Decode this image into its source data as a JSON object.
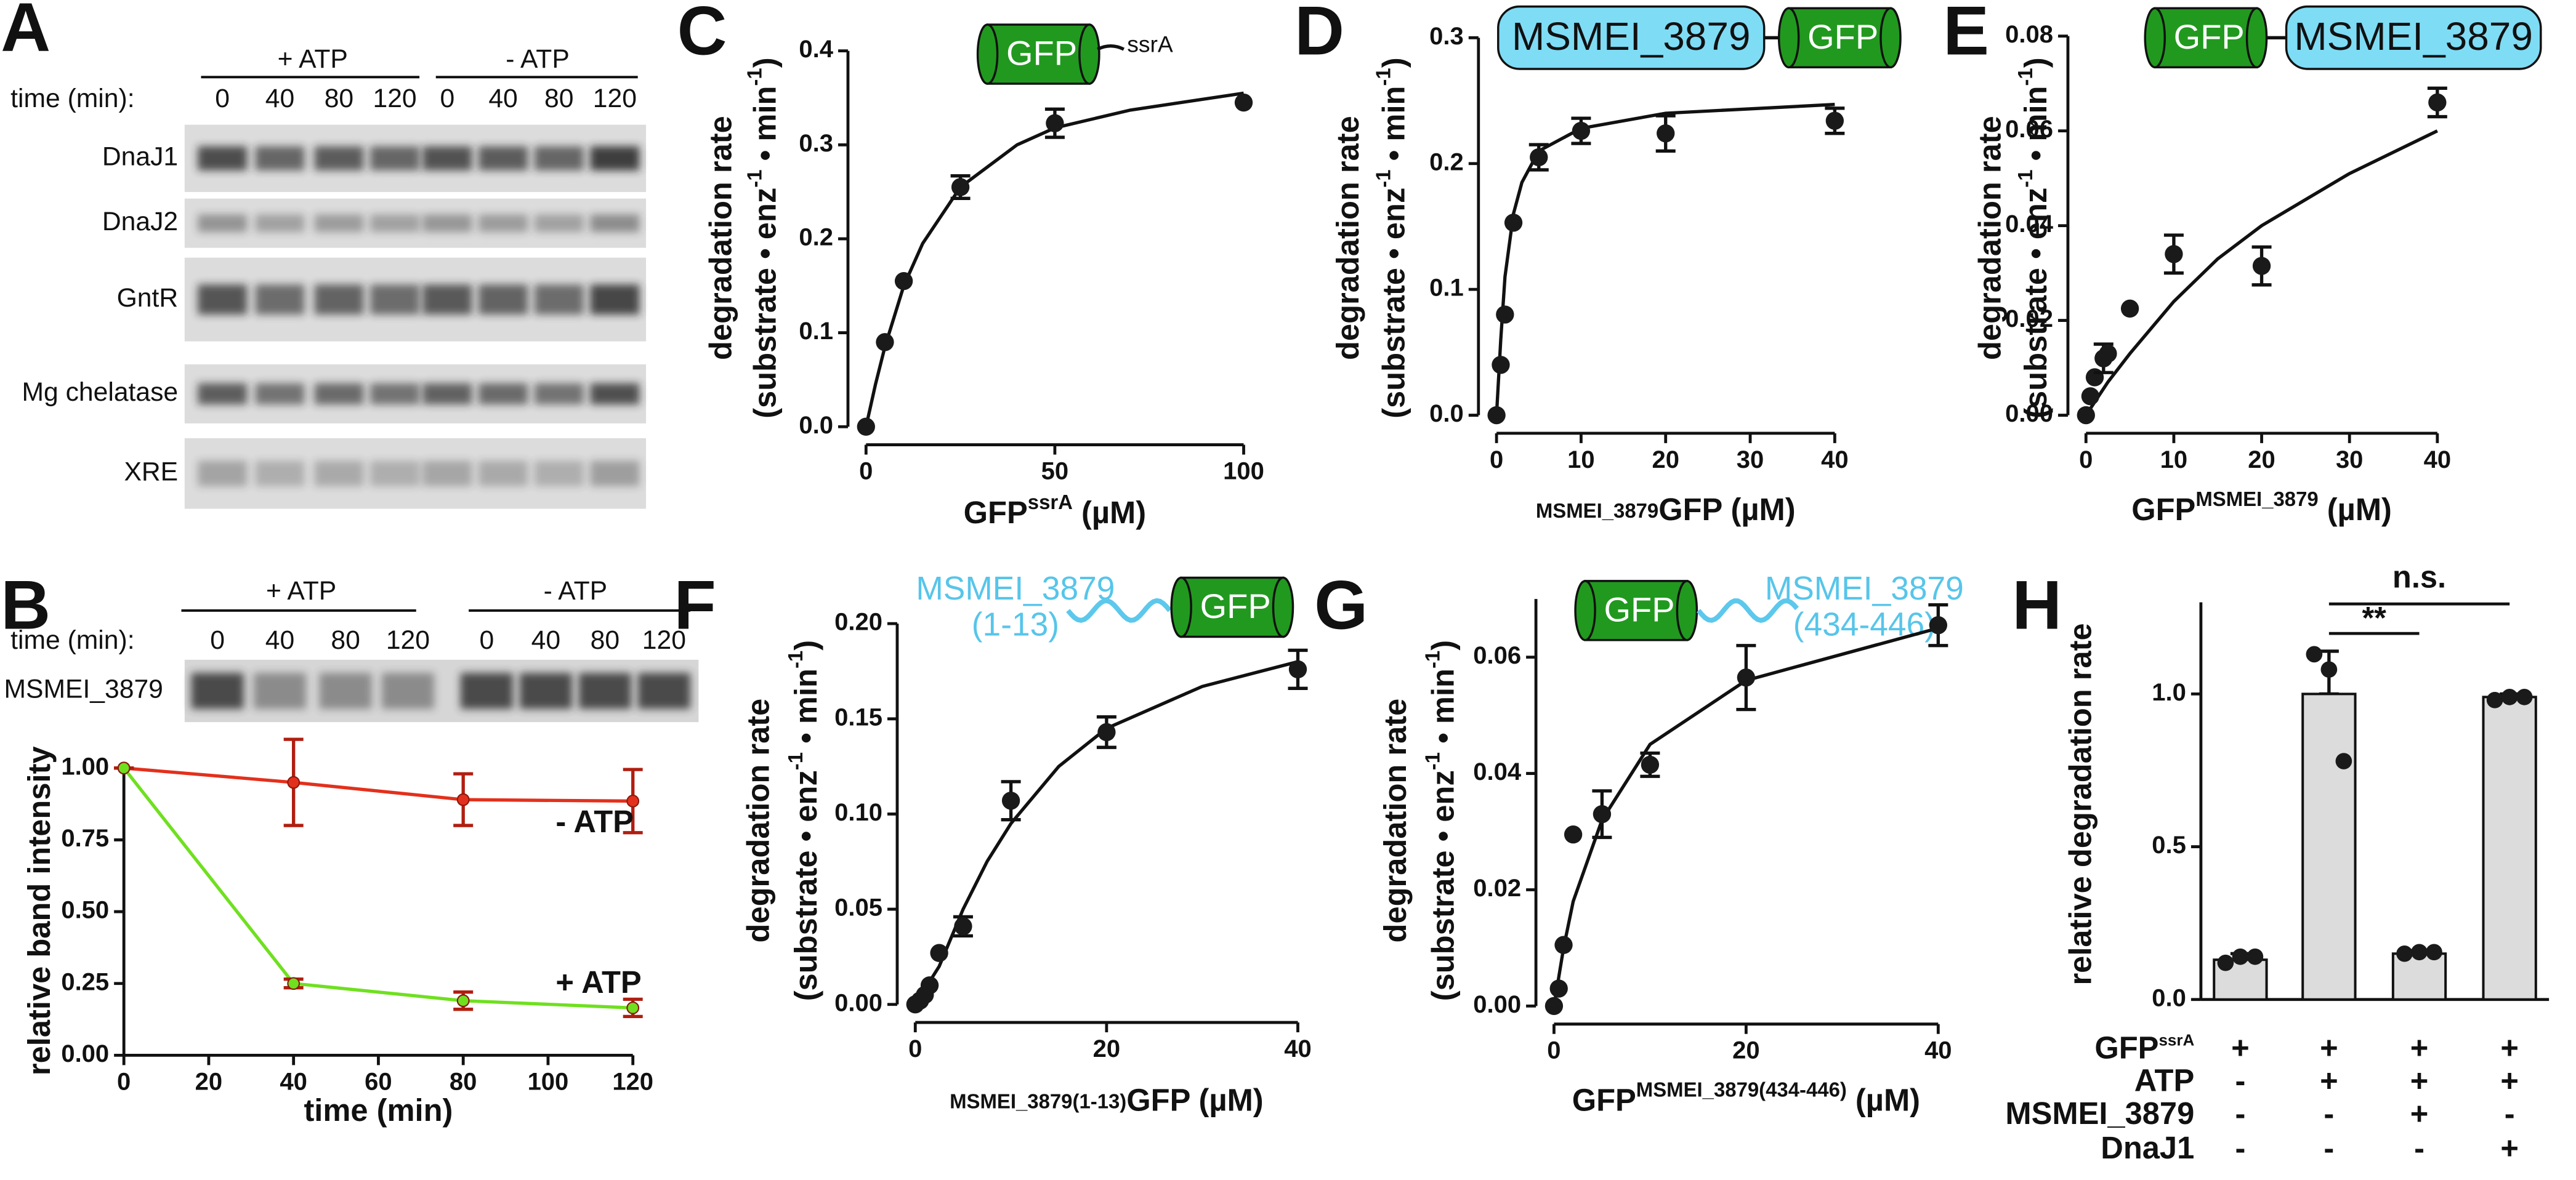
{
  "gels": {
    "panel": "A",
    "conditions": [
      "+ ATP",
      "- ATP"
    ],
    "time_label": "time (min):",
    "times": [
      "0",
      "40",
      "80",
      "120",
      "0",
      "40",
      "80",
      "120"
    ],
    "rows": [
      "DnaJ1",
      "DnaJ2",
      "GntR",
      "Mg chelatase",
      "XRE"
    ]
  },
  "gel_b": {
    "conditions": [
      "+ ATP",
      "- ATP"
    ],
    "time_label": "time (min):",
    "times": [
      "0",
      "40",
      "80",
      "120",
      "0",
      "40",
      "80",
      "120"
    ],
    "rows": [
      "MSMEI_3879"
    ]
  },
  "chart_data": [
    {
      "type": "line",
      "panel": "B",
      "x": [
        0,
        40,
        80,
        120
      ],
      "xlim": [
        0,
        120
      ],
      "xticks": [
        0,
        20,
        40,
        60,
        80,
        100,
        120
      ],
      "ylim": [
        0,
        1
      ],
      "yticks": [
        {
          "value": 0,
          "label": "0.00"
        },
        0.25,
        {
          "value": 0.5,
          "label": "0.50"
        },
        0.75,
        {
          "value": 1,
          "label": "1.00"
        }
      ],
      "x_label": "time (min)",
      "y_label": "relative band intensity",
      "series": [
        {
          "name": "- ATP",
          "color": "#e3301c",
          "values": [
            1.0,
            0.95,
            0.89,
            0.885
          ],
          "errors": [
            0,
            0.15,
            0.09,
            0.11
          ]
        },
        {
          "name": "+ ATP",
          "color": "#6fe01f",
          "values": [
            1.0,
            0.25,
            0.19,
            0.165
          ],
          "errors": [
            0,
            0.015,
            0.03,
            0.03
          ]
        }
      ]
    },
    {
      "type": "scatter",
      "panel": "C",
      "construct": [
        "GFP",
        "ssrA"
      ],
      "x": [
        0,
        5,
        10,
        25,
        50,
        100
      ],
      "values": [
        0,
        0.09,
        0.155,
        0.255,
        0.323,
        0.345
      ],
      "errors": [
        null,
        null,
        null,
        0.012,
        0.015,
        null
      ],
      "fit": {
        "x": [
          0,
          2.5,
          5,
          10,
          15,
          25,
          40,
          50,
          70,
          100
        ],
        "values": [
          0,
          0.045,
          0.085,
          0.15,
          0.195,
          0.255,
          0.3,
          0.318,
          0.337,
          0.355
        ]
      },
      "xlim": [
        0,
        100
      ],
      "xticks": [
        0,
        50,
        100
      ],
      "ylim": [
        0,
        0.4
      ],
      "yticks": [
        {
          "value": 0,
          "label": "0.0"
        },
        0.1,
        0.2,
        0.3,
        0.4
      ],
      "x_label": [
        {
          "text": "GFP"
        },
        {
          "text": "ssrA",
          "sup": true
        },
        {
          "text": " (µM)"
        }
      ],
      "y_label": [
        [
          {
            "text": "degradation rate"
          }
        ],
        [
          {
            "text": "(substrate • enz"
          },
          {
            "text": "-1",
            "sup": true
          },
          {
            "text": " • min"
          },
          {
            "text": "-1",
            "sup": true
          },
          {
            "text": ")"
          }
        ]
      ]
    },
    {
      "type": "scatter",
      "panel": "D",
      "construct": [
        "MSMEI_3879",
        "GFP"
      ],
      "x": [
        0,
        0.5,
        1,
        2,
        5,
        10,
        20,
        40
      ],
      "values": [
        0,
        0.04,
        0.08,
        0.153,
        0.205,
        0.226,
        0.224,
        0.234
      ],
      "errors": [
        null,
        null,
        null,
        null,
        0.01,
        0.01,
        0.014,
        0.01
      ],
      "fit": {
        "x": [
          0,
          0.5,
          1,
          2,
          3,
          5,
          10,
          20,
          40
        ],
        "values": [
          0,
          0.06,
          0.11,
          0.16,
          0.185,
          0.21,
          0.228,
          0.24,
          0.247
        ]
      },
      "xlim": [
        0,
        40
      ],
      "xticks": [
        0,
        10,
        20,
        30,
        40
      ],
      "ylim": [
        0,
        0.3
      ],
      "yticks": [
        {
          "value": 0,
          "label": "0.0"
        },
        0.1,
        0.2,
        0.3
      ],
      "x_label": [
        {
          "text": "MSMEI_3879",
          "sub": true
        },
        {
          "text": "GFP (µM)"
        }
      ],
      "y_label": [
        [
          {
            "text": "degradation rate"
          }
        ],
        [
          {
            "text": "(substrate • enz"
          },
          {
            "text": "-1",
            "sup": true
          },
          {
            "text": " • min"
          },
          {
            "text": "-1",
            "sup": true
          },
          {
            "text": ")"
          }
        ]
      ]
    },
    {
      "type": "scatter",
      "panel": "E",
      "construct": [
        "GFP",
        "MSMEI_3879"
      ],
      "x": [
        0,
        0.5,
        1,
        2,
        2.5,
        5,
        10,
        20,
        40
      ],
      "values": [
        0,
        0.004,
        0.008,
        0.012,
        0.013,
        0.0225,
        0.034,
        0.0315,
        0.066
      ],
      "errors": [
        null,
        null,
        null,
        0.003,
        null,
        null,
        0.004,
        0.004,
        0.003
      ],
      "fit": {
        "x": [
          0,
          2.5,
          5,
          10,
          15,
          20,
          30,
          40
        ],
        "values": [
          0,
          0.007,
          0.013,
          0.024,
          0.033,
          0.04,
          0.051,
          0.06
        ]
      },
      "xlim": [
        0,
        40
      ],
      "xticks": [
        0,
        10,
        20,
        30,
        40
      ],
      "ylim": [
        0,
        0.08
      ],
      "yticks": [
        {
          "value": 0,
          "label": "0.00"
        },
        0.02,
        0.04,
        0.06,
        0.08
      ],
      "x_label": [
        {
          "text": "GFP"
        },
        {
          "text": "MSMEI_3879",
          "sup": true
        },
        {
          "text": " (µM)"
        }
      ],
      "y_label": [
        [
          {
            "text": "degradation rate"
          }
        ],
        [
          {
            "text": "(substrate • enz"
          },
          {
            "text": "-1",
            "sup": true
          },
          {
            "text": " • min"
          },
          {
            "text": "-1",
            "sup": true
          },
          {
            "text": ")"
          }
        ]
      ]
    },
    {
      "type": "scatter",
      "panel": "F",
      "construct": [
        "MSMEI_3879",
        "(1-13)",
        "GFP"
      ],
      "x": [
        0,
        0.5,
        1,
        1.5,
        2.5,
        5,
        10,
        20,
        40
      ],
      "values": [
        0,
        0.002,
        0.005,
        0.01,
        0.027,
        0.041,
        0.107,
        0.143,
        0.176
      ],
      "errors": [
        null,
        null,
        null,
        null,
        null,
        0.005,
        0.01,
        0.008,
        0.01
      ],
      "fit": {
        "x": [
          0,
          2.5,
          5,
          7.5,
          10,
          15,
          20,
          30,
          40
        ],
        "values": [
          0,
          0.02,
          0.05,
          0.075,
          0.095,
          0.125,
          0.145,
          0.167,
          0.18
        ]
      },
      "xlim": [
        0,
        40
      ],
      "xticks": [
        0,
        20,
        40
      ],
      "ylim": [
        0,
        0.2
      ],
      "yticks": [
        {
          "value": 0,
          "label": "0.00"
        },
        0.05,
        {
          "value": 0.1,
          "label": "0.10"
        },
        0.15,
        {
          "value": 0.2,
          "label": "0.20"
        }
      ],
      "x_label": [
        {
          "text": "MSMEI_3879(1-13)",
          "sub": true
        },
        {
          "text": "GFP (µM)"
        }
      ],
      "y_label": [
        [
          {
            "text": "degradation rate"
          }
        ],
        [
          {
            "text": "(substrate • enz"
          },
          {
            "text": "-1",
            "sup": true
          },
          {
            "text": " • min"
          },
          {
            "text": "-1",
            "sup": true
          },
          {
            "text": ")"
          }
        ]
      ]
    },
    {
      "type": "scatter",
      "panel": "G",
      "construct": [
        "GFP",
        "MSMEI_3879",
        "(434-446)"
      ],
      "x": [
        0,
        0.5,
        1,
        2,
        5,
        10,
        20,
        40
      ],
      "values": [
        0,
        0.003,
        0.0105,
        0.0295,
        0.033,
        0.0415,
        0.0565,
        0.0655
      ],
      "errors": [
        null,
        null,
        null,
        null,
        0.004,
        0.002,
        0.0055,
        0.0035
      ],
      "fit": {
        "x": [
          0,
          1,
          2,
          5,
          10,
          20,
          40
        ],
        "values": [
          0,
          0.01,
          0.018,
          0.032,
          0.045,
          0.056,
          0.065
        ]
      },
      "xlim": [
        0,
        40
      ],
      "xticks": [
        0,
        20,
        40
      ],
      "ylim": [
        0,
        0.07
      ],
      "yticks": [
        {
          "value": 0,
          "label": "0.00"
        },
        0.02,
        0.04,
        0.06
      ],
      "x_label": [
        {
          "text": "GFP"
        },
        {
          "text": "MSMEI_3879(434-446)",
          "sup": true
        },
        {
          "text": " (µM)"
        }
      ],
      "y_label": [
        [
          {
            "text": "degradation rate"
          }
        ],
        [
          {
            "text": "(substrate • enz"
          },
          {
            "text": "-1",
            "sup": true
          },
          {
            "text": " • min"
          },
          {
            "text": "-1",
            "sup": true
          },
          {
            "text": ")"
          }
        ]
      ]
    },
    {
      "type": "bar",
      "panel": "H",
      "values": [
        0.13,
        1.0,
        0.15,
        0.99
      ],
      "errors": [
        0.02,
        0.14,
        0.01,
        0.01
      ],
      "color": "#dcdcdc",
      "points": [
        [
          0.12,
          0.14,
          0.14
        ],
        [
          1.13,
          1.08,
          0.78
        ],
        [
          0.15,
          0.155,
          0.155
        ],
        [
          0.98,
          0.99,
          0.99
        ]
      ],
      "ylim": [
        0,
        1.3
      ],
      "yticks": [
        {
          "value": 0,
          "label": "0.0"
        },
        0.5,
        {
          "value": 1,
          "label": "1.0"
        }
      ],
      "y_label": "relative degradation rate",
      "conditions": [
        {
          "name": [
            {
              "text": "GFP"
            },
            {
              "text": "ssrA",
              "sup": true
            }
          ],
          "signs": [
            "+",
            "+",
            "+",
            "+"
          ]
        },
        {
          "name": [
            {
              "text": "ATP"
            }
          ],
          "signs": [
            "-",
            "+",
            "+",
            "+"
          ]
        },
        {
          "name": [
            {
              "text": "MSMEI_3879"
            }
          ],
          "signs": [
            "-",
            "-",
            "+",
            "-"
          ]
        },
        {
          "name": [
            {
              "text": "DnaJ1"
            }
          ],
          "signs": [
            "-",
            "-",
            "-",
            "+"
          ]
        }
      ],
      "annotations": [
        "**",
        "n.s."
      ]
    }
  ]
}
